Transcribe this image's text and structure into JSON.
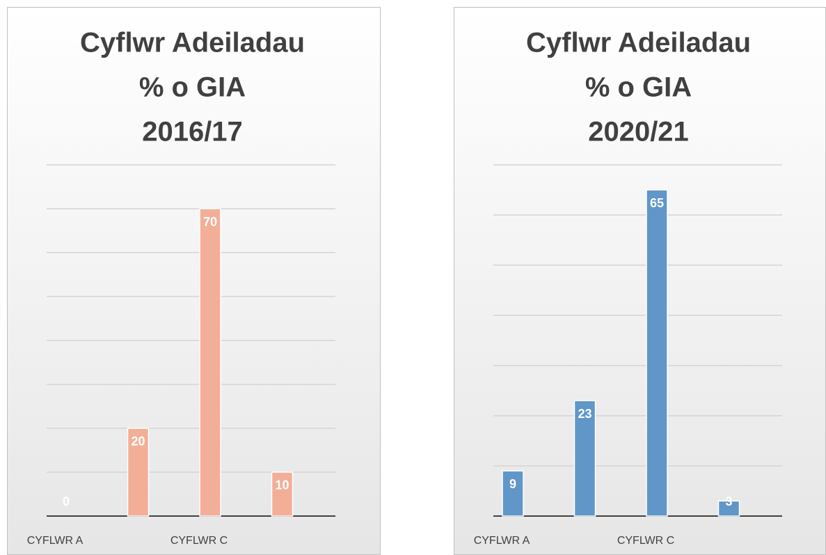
{
  "chart_data": [
    {
      "type": "bar",
      "title": [
        "Cyflwr Adeiladau",
        "% o GIA",
        "2016/17"
      ],
      "categories": [
        "CYFLWR A",
        null,
        "CYFLWR C",
        null
      ],
      "values": [
        0,
        20,
        70,
        10
      ],
      "color": "#f3ae97",
      "ylim": [
        0,
        80
      ],
      "yticks": [
        0,
        10,
        20,
        30,
        40,
        50,
        60,
        70,
        80
      ],
      "grid": true
    },
    {
      "type": "bar",
      "title": [
        "Cyflwr Adeiladau",
        "% o GIA",
        "2020/21"
      ],
      "categories": [
        "CYFLWR A",
        null,
        "CYFLWR C",
        null
      ],
      "values": [
        9,
        23,
        65,
        3
      ],
      "color": "#6196c9",
      "ylim": [
        0,
        70
      ],
      "yticks": [
        0,
        10,
        20,
        30,
        40,
        50,
        60,
        70
      ],
      "grid": true
    }
  ]
}
